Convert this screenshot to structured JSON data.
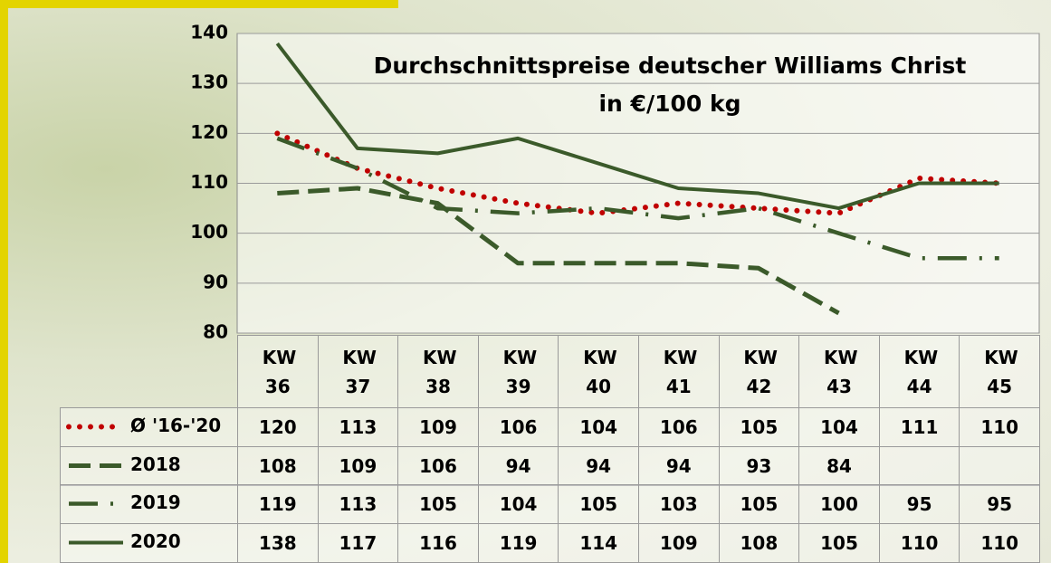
{
  "chart_data": {
    "type": "line",
    "title": "Durchschnittspreise deutscher Williams Christ",
    "subtitle": "in €/100 kg",
    "categories": [
      "KW 36",
      "KW 37",
      "KW 38",
      "KW 39",
      "KW 40",
      "KW 41",
      "KW 42",
      "KW 43",
      "KW 44",
      "KW 45"
    ],
    "ylim": [
      80,
      140
    ],
    "yticks": [
      80,
      90,
      100,
      110,
      120,
      130,
      140
    ],
    "grid": true,
    "series": [
      {
        "name": "Ø '16-'20",
        "color": "#c00000",
        "style": "dotted",
        "values": [
          120,
          113,
          109,
          106,
          104,
          106,
          105,
          104,
          111,
          110
        ]
      },
      {
        "name": "2018",
        "color": "#3b5a2a",
        "style": "dashed",
        "values": [
          108,
          109,
          106,
          94,
          94,
          94,
          93,
          84,
          null,
          null
        ]
      },
      {
        "name": "2019",
        "color": "#3b5a2a",
        "style": "dashdot",
        "values": [
          119,
          113,
          105,
          104,
          105,
          103,
          105,
          100,
          95,
          95
        ]
      },
      {
        "name": "2020",
        "color": "#3b5a2a",
        "style": "solid",
        "values": [
          138,
          117,
          116,
          119,
          114,
          109,
          108,
          105,
          110,
          110
        ]
      }
    ]
  }
}
